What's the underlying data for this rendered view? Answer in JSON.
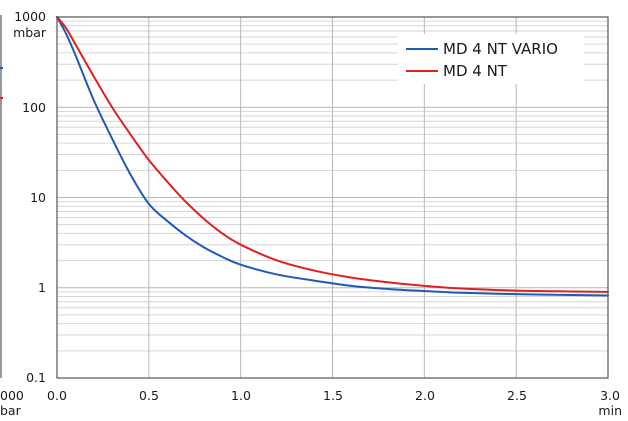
{
  "chart_data": {
    "type": "line",
    "y_scale": "log",
    "xlim": [
      0.0,
      3.0
    ],
    "ylim": [
      0.1,
      1000
    ],
    "grid": true,
    "legend_position": "top-right",
    "x_ticks": [
      "0.0",
      "0.5",
      "1.0",
      "1.5",
      "2.0",
      "2.5",
      "3.0"
    ],
    "x_tick_values": [
      0,
      0.5,
      1.0,
      1.5,
      2.0,
      2.5,
      3.0
    ],
    "x_unit": "min",
    "y_ticks": [
      "0.1",
      "1",
      "10",
      "100",
      "1000"
    ],
    "y_tick_values": [
      0.1,
      1,
      10,
      100,
      1000
    ],
    "y_unit": "mbar",
    "left_edge_labels": [
      "000",
      "bar"
    ],
    "series": [
      {
        "name": "MD 4 NT VARIO",
        "color": "#1f5bb5",
        "x": [
          0,
          0.05,
          0.1,
          0.2,
          0.3,
          0.4,
          0.5,
          0.6,
          0.7,
          0.8,
          0.9,
          1.0,
          1.2,
          1.4,
          1.6,
          1.8,
          2.0,
          2.2,
          2.5,
          2.8,
          3.0
        ],
        "y": [
          1000,
          650,
          380,
          120,
          45,
          18,
          8.5,
          5.5,
          3.8,
          2.8,
          2.2,
          1.8,
          1.4,
          1.2,
          1.05,
          0.97,
          0.92,
          0.88,
          0.85,
          0.83,
          0.82
        ]
      },
      {
        "name": "MD 4 NT",
        "color": "#e02020",
        "x": [
          0,
          0.05,
          0.1,
          0.2,
          0.3,
          0.4,
          0.5,
          0.6,
          0.7,
          0.8,
          0.9,
          1.0,
          1.2,
          1.4,
          1.6,
          1.8,
          2.0,
          2.2,
          2.5,
          2.8,
          3.0
        ],
        "y": [
          1000,
          750,
          500,
          220,
          100,
          50,
          26,
          15,
          9,
          5.8,
          4.0,
          3.0,
          2.0,
          1.55,
          1.3,
          1.15,
          1.05,
          0.98,
          0.93,
          0.91,
          0.9
        ]
      }
    ]
  }
}
